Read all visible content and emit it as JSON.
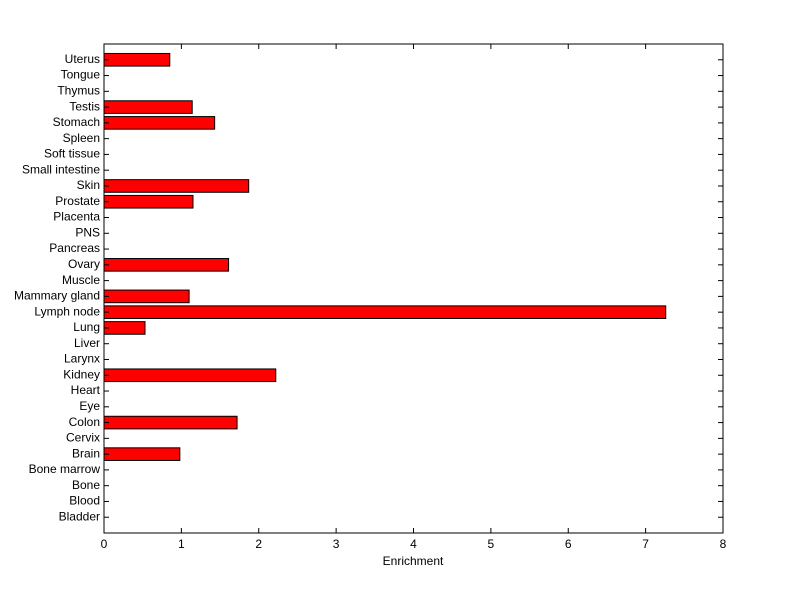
{
  "chart_data": {
    "type": "barh",
    "xlabel": "Enrichment",
    "categories": [
      "Bladder",
      "Blood",
      "Bone",
      "Bone marrow",
      "Brain",
      "Cervix",
      "Colon",
      "Eye",
      "Heart",
      "Kidney",
      "Larynx",
      "Liver",
      "Lung",
      "Lymph node",
      "Mammary gland",
      "Muscle",
      "Ovary",
      "Pancreas",
      "PNS",
      "Placenta",
      "Prostate",
      "Skin",
      "Small intestine",
      "Soft tissue",
      "Spleen",
      "Stomach",
      "Testis",
      "Thymus",
      "Tongue",
      "Uterus"
    ],
    "values": [
      0,
      0,
      0,
      0,
      0.98,
      0,
      1.72,
      0,
      0,
      2.22,
      0,
      0,
      0.53,
      7.26,
      1.1,
      0,
      1.61,
      0,
      0,
      0,
      1.15,
      1.87,
      0,
      0,
      0,
      1.43,
      1.14,
      0,
      0,
      0.85
    ],
    "color": "#ff0000",
    "xlim": [
      0,
      8
    ],
    "xticks": [
      0,
      1,
      2,
      3,
      4,
      5,
      6,
      7,
      8
    ]
  }
}
